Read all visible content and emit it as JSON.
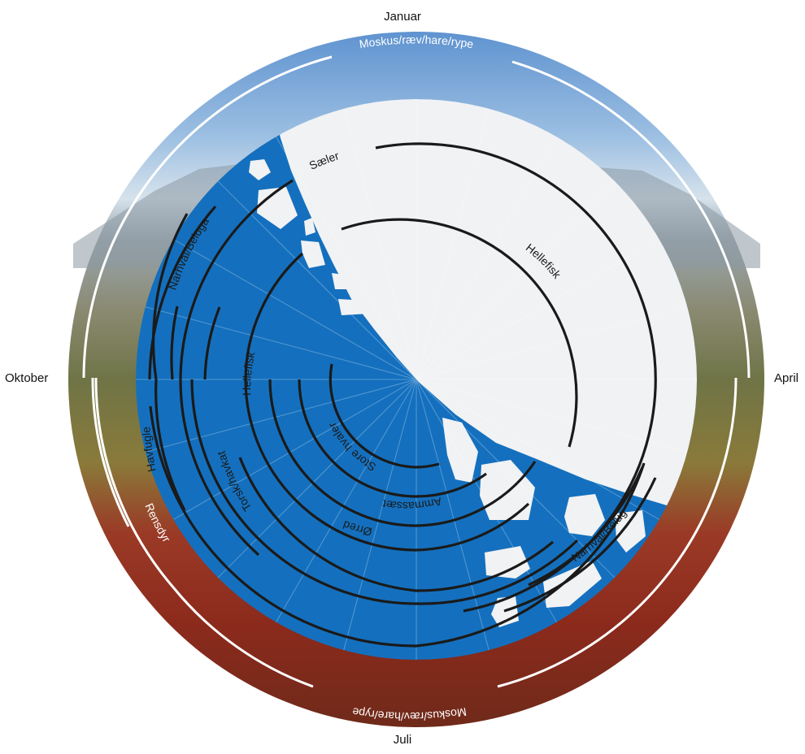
{
  "months": {
    "january": "Januar",
    "april": "April",
    "july": "Juli",
    "october": "Oktober"
  },
  "outer_ring": {
    "top_label": "Moskus/ræv/hare/rype",
    "bottom_label": "Moskus/ræv/hare/rype",
    "left_label": "Rensdyr"
  },
  "arcs": {
    "saeler": "Sæler",
    "narhval_left": "Narhval/Beluga",
    "havfugle": "Havfugle",
    "torsk": "Torsk/havkat",
    "hellefisk_winter": "Hellefisk",
    "hellefisk_summer": "Hellefisk",
    "oerred": "Ørred",
    "ammassaet": "Ammassæt",
    "store_hvaler": "Store hvaler",
    "narhval_right": "Narhval/Beluga"
  },
  "colors": {
    "sea": "#1470be",
    "ice": "#f1f2f4",
    "sky": "#8fb4dc",
    "arc": "#1a1a1a",
    "ring": "#ffffff"
  }
}
